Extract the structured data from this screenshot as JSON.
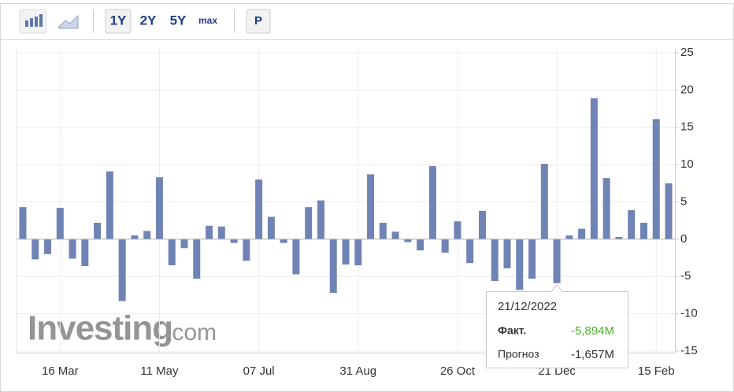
{
  "toolbar": {
    "ranges": [
      "1Y",
      "2Y",
      "5Y",
      "max"
    ],
    "mode": "P"
  },
  "chart_data": {
    "type": "bar",
    "color": "#7083b5",
    "grid": true,
    "categories": [
      null,
      null,
      null,
      "16 Mar",
      null,
      null,
      null,
      null,
      null,
      null,
      null,
      "11 May",
      null,
      null,
      null,
      null,
      null,
      null,
      null,
      "07 Jul",
      null,
      null,
      null,
      null,
      null,
      null,
      null,
      "31 Aug",
      null,
      null,
      null,
      null,
      null,
      null,
      null,
      "26 Oct",
      null,
      null,
      null,
      null,
      null,
      null,
      null,
      "21 Dec",
      null,
      null,
      null,
      null,
      null,
      null,
      null,
      "15 Feb",
      null
    ],
    "values": [
      4.3,
      -2.7,
      -2.0,
      4.2,
      -2.6,
      -3.6,
      2.2,
      9.1,
      -8.3,
      0.5,
      1.1,
      8.3,
      -3.5,
      -1.2,
      -5.3,
      1.8,
      1.7,
      -0.5,
      -2.9,
      8.0,
      3.0,
      -0.5,
      -4.7,
      4.3,
      5.2,
      -7.2,
      -3.4,
      -3.5,
      8.7,
      2.2,
      1.0,
      -0.4,
      -1.5,
      9.8,
      -1.8,
      2.4,
      -3.2,
      3.8,
      -5.6,
      -3.9,
      -6.8,
      -5.3,
      10.1,
      -5.894,
      0.5,
      1.4,
      18.9,
      8.2,
      0.3,
      3.9,
      2.2,
      16.1,
      7.5
    ],
    "ylim": [
      -15,
      25
    ],
    "yticks": [
      -15,
      -10,
      -5,
      0,
      5,
      10,
      15,
      20,
      25
    ],
    "watermark": {
      "brand": "Investing",
      "suffix": ".com"
    },
    "tooltip": {
      "date": "21/12/2022",
      "actual_label": "Факт.",
      "actual_value": "-5,894M",
      "forecast_label": "Прогноз",
      "forecast_value": "-1,657M"
    }
  }
}
